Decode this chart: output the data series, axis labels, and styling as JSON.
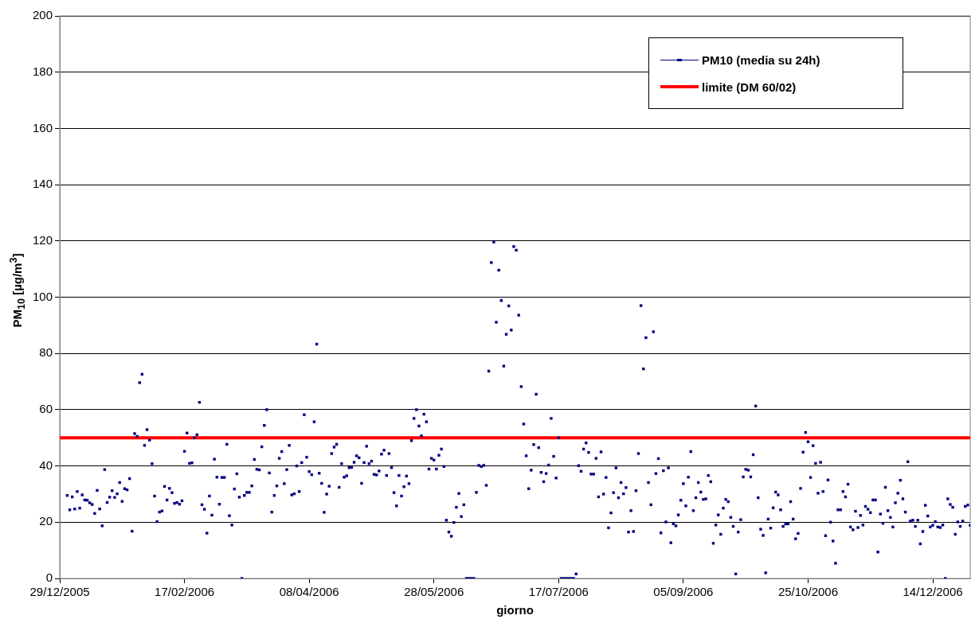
{
  "chart_data": {
    "type": "scatter",
    "xlabel": "giorno",
    "ylabel": "PM$_{10}$ [µg/m$^{3}$]",
    "xlim": [
      "2005-12-29",
      "2006-12-29"
    ],
    "xticks": [
      {
        "value": "2005-12-29",
        "label": "29/12/2005"
      },
      {
        "value": "2006-02-17",
        "label": "17/02/2006"
      },
      {
        "value": "2006-04-08",
        "label": "08/04/2006"
      },
      {
        "value": "2006-05-28",
        "label": "28/05/2006"
      },
      {
        "value": "2006-07-17",
        "label": "17/07/2006"
      },
      {
        "value": "2006-09-05",
        "label": "05/09/2006"
      },
      {
        "value": "2006-10-25",
        "label": "25/10/2006"
      },
      {
        "value": "2006-12-14",
        "label": "14/12/2006"
      }
    ],
    "ylim": [
      0,
      200
    ],
    "yticks": [
      0,
      20,
      40,
      60,
      80,
      100,
      120,
      140,
      160,
      180,
      200
    ],
    "grid": "y",
    "legend": "top right",
    "marker": "square",
    "ref_lines": [
      {
        "axis": "y",
        "value": 50,
        "label": "limite (DM 60/02)",
        "color": "#ff0000"
      }
    ],
    "x": [
      "2006-01-01",
      "2006-01-02",
      "2006-01-03",
      "2006-01-04",
      "2006-01-05",
      "2006-01-06",
      "2006-01-07",
      "2006-01-08",
      "2006-01-09",
      "2006-01-10",
      "2006-01-11",
      "2006-01-12",
      "2006-01-13",
      "2006-01-14",
      "2006-01-15",
      "2006-01-16",
      "2006-01-17",
      "2006-01-18",
      "2006-01-19",
      "2006-01-20",
      "2006-01-21",
      "2006-01-22",
      "2006-01-23",
      "2006-01-24",
      "2006-01-25",
      "2006-01-26",
      "2006-01-27",
      "2006-01-28",
      "2006-01-29",
      "2006-01-30",
      "2006-01-31",
      "2006-02-01",
      "2006-02-02",
      "2006-02-03",
      "2006-02-04",
      "2006-02-05",
      "2006-02-06",
      "2006-02-07",
      "2006-02-08",
      "2006-02-09",
      "2006-02-10",
      "2006-02-11",
      "2006-02-12",
      "2006-02-13",
      "2006-02-14",
      "2006-02-15",
      "2006-02-16",
      "2006-02-17",
      "2006-02-18",
      "2006-02-19",
      "2006-02-20",
      "2006-02-21",
      "2006-02-22",
      "2006-02-23",
      "2006-02-24",
      "2006-02-25",
      "2006-02-26",
      "2006-02-27",
      "2006-02-28",
      "2006-03-01",
      "2006-03-02",
      "2006-03-03",
      "2006-03-04",
      "2006-03-05",
      "2006-03-06",
      "2006-03-07",
      "2006-03-08",
      "2006-03-09",
      "2006-03-10",
      "2006-03-11",
      "2006-03-12",
      "2006-03-13",
      "2006-03-14",
      "2006-03-15",
      "2006-03-16",
      "2006-03-17",
      "2006-03-18",
      "2006-03-19",
      "2006-03-20",
      "2006-03-21",
      "2006-03-22",
      "2006-03-23",
      "2006-03-24",
      "2006-03-25",
      "2006-03-26",
      "2006-03-27",
      "2006-03-28",
      "2006-03-29",
      "2006-03-30",
      "2006-03-31",
      "2006-04-01",
      "2006-04-02",
      "2006-04-03",
      "2006-04-04",
      "2006-04-05",
      "2006-04-06",
      "2006-04-07",
      "2006-04-08",
      "2006-04-09",
      "2006-04-10",
      "2006-04-11",
      "2006-04-12",
      "2006-04-13",
      "2006-04-14",
      "2006-04-15",
      "2006-04-16",
      "2006-04-17",
      "2006-04-18",
      "2006-04-19",
      "2006-04-20",
      "2006-04-21",
      "2006-04-22",
      "2006-04-23",
      "2006-04-24",
      "2006-04-25",
      "2006-04-26",
      "2006-04-27",
      "2006-04-28",
      "2006-04-29",
      "2006-04-30",
      "2006-05-01",
      "2006-05-02",
      "2006-05-03",
      "2006-05-04",
      "2006-05-05",
      "2006-05-06",
      "2006-05-07",
      "2006-05-08",
      "2006-05-09",
      "2006-05-10",
      "2006-05-11",
      "2006-05-12",
      "2006-05-13",
      "2006-05-14",
      "2006-05-15",
      "2006-05-16",
      "2006-05-17",
      "2006-05-18",
      "2006-05-19",
      "2006-05-20",
      "2006-05-21",
      "2006-05-22",
      "2006-05-23",
      "2006-05-24",
      "2006-05-25",
      "2006-05-26",
      "2006-05-27",
      "2006-05-28",
      "2006-05-29",
      "2006-05-30",
      "2006-05-31",
      "2006-06-01",
      "2006-06-02",
      "2006-06-03",
      "2006-06-04",
      "2006-06-05",
      "2006-06-06",
      "2006-06-07",
      "2006-06-08",
      "2006-06-09",
      "2006-06-10",
      "2006-06-11",
      "2006-06-12",
      "2006-06-13",
      "2006-06-14",
      "2006-06-15",
      "2006-06-16",
      "2006-06-17",
      "2006-06-18",
      "2006-06-19",
      "2006-06-20",
      "2006-06-21",
      "2006-06-22",
      "2006-06-23",
      "2006-06-24",
      "2006-06-25",
      "2006-06-26",
      "2006-06-27",
      "2006-06-28",
      "2006-06-29",
      "2006-06-30",
      "2006-07-01",
      "2006-07-02",
      "2006-07-03",
      "2006-07-04",
      "2006-07-05",
      "2006-07-06",
      "2006-07-07",
      "2006-07-08",
      "2006-07-09",
      "2006-07-10",
      "2006-07-11",
      "2006-07-12",
      "2006-07-13",
      "2006-07-14",
      "2006-07-15",
      "2006-07-16",
      "2006-07-17",
      "2006-07-18",
      "2006-07-19",
      "2006-07-20",
      "2006-07-21",
      "2006-07-22",
      "2006-07-23",
      "2006-07-24",
      "2006-07-25",
      "2006-07-26",
      "2006-07-27",
      "2006-07-28",
      "2006-07-29",
      "2006-07-30",
      "2006-07-31",
      "2006-08-01",
      "2006-08-02",
      "2006-08-03",
      "2006-08-04",
      "2006-08-05",
      "2006-08-06",
      "2006-08-07",
      "2006-08-08",
      "2006-08-09",
      "2006-08-10",
      "2006-08-11",
      "2006-08-12",
      "2006-08-13",
      "2006-08-14",
      "2006-08-15",
      "2006-08-16",
      "2006-08-17",
      "2006-08-18",
      "2006-08-19",
      "2006-08-20",
      "2006-08-21",
      "2006-08-22",
      "2006-08-23",
      "2006-08-24",
      "2006-08-25",
      "2006-08-26",
      "2006-08-27",
      "2006-08-28",
      "2006-08-29",
      "2006-08-30",
      "2006-08-31",
      "2006-09-01",
      "2006-09-02",
      "2006-09-03",
      "2006-09-04",
      "2006-09-05",
      "2006-09-06",
      "2006-09-07",
      "2006-09-08",
      "2006-09-09",
      "2006-09-10",
      "2006-09-11",
      "2006-09-12",
      "2006-09-13",
      "2006-09-14",
      "2006-09-15",
      "2006-09-16",
      "2006-09-17",
      "2006-09-18",
      "2006-09-19",
      "2006-09-20",
      "2006-09-21",
      "2006-09-22",
      "2006-09-23",
      "2006-09-24",
      "2006-09-25",
      "2006-09-26",
      "2006-09-27",
      "2006-09-28",
      "2006-09-29",
      "2006-09-30",
      "2006-10-01",
      "2006-10-02",
      "2006-10-03",
      "2006-10-04",
      "2006-10-05",
      "2006-10-06",
      "2006-10-07",
      "2006-10-08",
      "2006-10-09",
      "2006-10-10",
      "2006-10-11",
      "2006-10-12",
      "2006-10-13",
      "2006-10-14",
      "2006-10-15",
      "2006-10-16",
      "2006-10-17",
      "2006-10-18",
      "2006-10-19",
      "2006-10-20",
      "2006-10-21",
      "2006-10-22",
      "2006-10-23",
      "2006-10-24",
      "2006-10-25",
      "2006-10-26",
      "2006-10-27",
      "2006-10-28",
      "2006-10-29",
      "2006-10-30",
      "2006-10-31",
      "2006-11-01",
      "2006-11-02",
      "2006-11-03",
      "2006-11-04",
      "2006-11-05",
      "2006-11-06",
      "2006-11-07",
      "2006-11-08",
      "2006-11-09",
      "2006-11-10",
      "2006-11-11",
      "2006-11-12",
      "2006-11-13",
      "2006-11-14",
      "2006-11-15",
      "2006-11-16",
      "2006-11-17",
      "2006-11-18",
      "2006-11-19",
      "2006-11-20",
      "2006-11-21",
      "2006-11-22",
      "2006-11-23",
      "2006-11-24",
      "2006-11-25",
      "2006-11-26",
      "2006-11-27",
      "2006-11-28",
      "2006-11-29",
      "2006-11-30",
      "2006-12-01",
      "2006-12-02",
      "2006-12-03",
      "2006-12-04",
      "2006-12-05",
      "2006-12-06",
      "2006-12-07",
      "2006-12-08",
      "2006-12-09",
      "2006-12-10",
      "2006-12-11",
      "2006-12-12",
      "2006-12-13",
      "2006-12-14",
      "2006-12-15",
      "2006-12-16",
      "2006-12-17",
      "2006-12-18",
      "2006-12-19",
      "2006-12-20",
      "2006-12-21",
      "2006-12-22",
      "2006-12-23",
      "2006-12-24",
      "2006-12-25",
      "2006-12-26",
      "2006-12-27",
      "2006-12-28",
      "2006-12-29"
    ],
    "series": [
      {
        "name": "PM10 (media su 24h)",
        "color": "#000080",
        "values": [
          29.5,
          24.4,
          29,
          24.7,
          30.9,
          25,
          29.7,
          27.9,
          27.8,
          26.9,
          26.3,
          23.1,
          31.3,
          24.7,
          18.7,
          38.7,
          27,
          28.9,
          31.2,
          28.8,
          30.1,
          34.1,
          27.4,
          31.9,
          31.5,
          35.5,
          16.8,
          51.5,
          50.5,
          69.6,
          72.6,
          47.3,
          52.9,
          49.2,
          40.8,
          29.3,
          20.2,
          23.6,
          24,
          32.7,
          27.9,
          32,
          30.5,
          26.7,
          27,
          26.4,
          27.6,
          45.2,
          51.7,
          40.9,
          41.1,
          50,
          51.1,
          62.6,
          26.2,
          24.6,
          16.1,
          29.3,
          22.5,
          42.4,
          36,
          26.4,
          35.9,
          35.9,
          47.7,
          22.3,
          19,
          31.8,
          37.2,
          28.9,
          0,
          29.5,
          30.6,
          30.6,
          32.9,
          42.3,
          38.8,
          38.6,
          46.8,
          54.4,
          60,
          37.5,
          23.6,
          29.5,
          32.9,
          42.7,
          45.1,
          33.7,
          38.7,
          47.3,
          29.7,
          30.1,
          40,
          30.9,
          41.2,
          58.2,
          43.1,
          38,
          36.9,
          55.7,
          83.3,
          37.4,
          33.8,
          23.5,
          30,
          32.8,
          44.4,
          46.7,
          47.7,
          32.4,
          40.8,
          36,
          36.5,
          39.4,
          39.5,
          41.3,
          43.6,
          42.9,
          33.8,
          41.2,
          47,
          40.8,
          41.7,
          37,
          36.8,
          38.2,
          44.2,
          45.6,
          36.6,
          44.4,
          39.4,
          30.5,
          25.8,
          36.6,
          29.3,
          32.6,
          36.4,
          33.7,
          49,
          56.9,
          60,
          54.2,
          50.7,
          58.4,
          55.7,
          38.9,
          42.7,
          42.1,
          38.9,
          43.8,
          46,
          39.8,
          20.7,
          16.5,
          15,
          19.9,
          25.3,
          30.2,
          22,
          26.2,
          0,
          0,
          0,
          0,
          30.6,
          40.2,
          39.8,
          40.2,
          33.1,
          73.7,
          112.3,
          119.6,
          91.1,
          109.6,
          98.8,
          75.5,
          86.8,
          96.9,
          88.3,
          118,
          116.7,
          93.6,
          68.2,
          54.9,
          43.6,
          31.9,
          38.5,
          47.6,
          65.5,
          46.5,
          37.7,
          34.4,
          37.3,
          40.3,
          56.9,
          43.4,
          35.7,
          50,
          0,
          0,
          0,
          0,
          0,
          0,
          1.6,
          40.1,
          38.1,
          46,
          48.2,
          44.8,
          37.1,
          37.1,
          42.7,
          29,
          45,
          30,
          35.9,
          18,
          23.3,
          30.5,
          39.3,
          28.7,
          34.1,
          30.1,
          32.3,
          16.5,
          24.1,
          16.7,
          31.2,
          44.4,
          97,
          74.5,
          85.6,
          34.1,
          26.2,
          87.7,
          37.3,
          42.6,
          16.2,
          38.3,
          20.1,
          39.3,
          12.7,
          19.4,
          18.7,
          22.6,
          27.8,
          33.7,
          25.8,
          36,
          45.1,
          24.1,
          28.7,
          34.1,
          30.7,
          28.1,
          28.3,
          36.6,
          34.4,
          12.5,
          19,
          22.6,
          15.7,
          25,
          28.1,
          27.3,
          21.7,
          18.5,
          1.6,
          16.5,
          20.9,
          36.1,
          38.8,
          38.5,
          36.1,
          44,
          61.3,
          28.7,
          17.5,
          15.3,
          2,
          21.1,
          17.9,
          25.1,
          30.7,
          29.7,
          24.4,
          18.5,
          19.4,
          19.4,
          27.3,
          21.1,
          14.1,
          16,
          32,
          44.9,
          51.9,
          48.6,
          35.9,
          47.2,
          40.9,
          30.3,
          41.3,
          30.9,
          15.2,
          35,
          20,
          13.3,
          5.4,
          24.4,
          24.4,
          30.9,
          29,
          33.5,
          18.3,
          17.3,
          23.9,
          18.1,
          22.4,
          19,
          25.6,
          24.6,
          23.4,
          27.9,
          27.9,
          9.4,
          22.9,
          19.6,
          32.4,
          24.1,
          21.7,
          18.3,
          26.9,
          30.3,
          34.9,
          28.3,
          23.6,
          41.5,
          20.4,
          20.7,
          18.5,
          20.7,
          12.3,
          16.7,
          26,
          22.2,
          18.3,
          18.9,
          20.2,
          18.3,
          18.1,
          19,
          0,
          28.3,
          26.3,
          25.3,
          15.7,
          20.1,
          18.5,
          20.4,
          25.6,
          26.1,
          18.9
        ]
      }
    ]
  }
}
